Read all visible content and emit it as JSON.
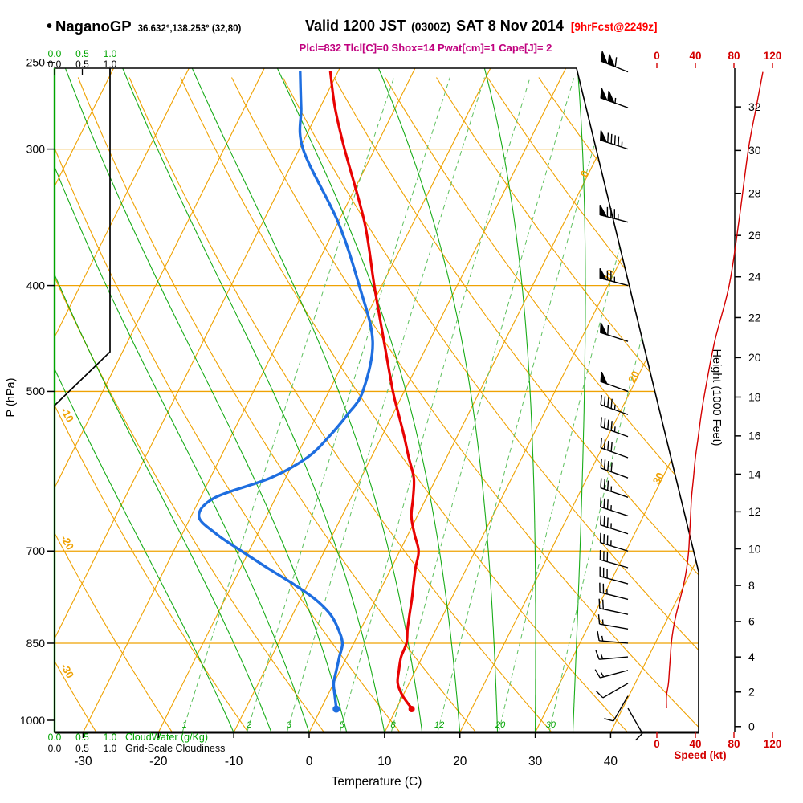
{
  "header": {
    "bullet": "•",
    "station": "NaganoGP",
    "coords": "36.632°,138.253° (32,80)",
    "valid_label": "Valid 1200 JST",
    "valid_zulu": "(0300Z)",
    "valid_date": "SAT 8 Nov 2014",
    "forecast_tag": "[9hrFcst@2249z]",
    "indices": "Plcl=832 Tlcl[C]=0 Shox=14 Pwat[cm]=1 Cape[J]= 2"
  },
  "axes": {
    "pressure_label": "P (hPa)",
    "pressure_ticks": [
      250,
      300,
      400,
      500,
      700,
      850,
      1000
    ],
    "temperature_label": "Temperature (C)",
    "temperature_ticks": [
      -30,
      -20,
      -10,
      0,
      10,
      20,
      30,
      40
    ],
    "height_label": "Height (1000 Feet)",
    "height_ticks": [
      0,
      2,
      4,
      6,
      8,
      10,
      12,
      14,
      16,
      18,
      20,
      22,
      24,
      26,
      28,
      30,
      32
    ],
    "speed_label": "Speed (kt)",
    "speed_ticks": [
      0,
      40,
      80,
      120
    ],
    "cloudwater_label": "CloudWater (g/Kg)",
    "cloudwater_ticks": [
      "0.0",
      "0.5",
      "1.0"
    ],
    "cloudiness_label": "Grid-Scale Cloudiness",
    "cloudiness_ticks": [
      "0.0",
      "0.5",
      "1.0"
    ]
  },
  "chart_data": {
    "type": "skewt_logp_sounding",
    "pressure_range_hpa": [
      1026,
      253
    ],
    "isobar_lines_hpa": [
      300,
      400,
      500,
      700,
      850
    ],
    "isotherm_step_c": 10,
    "isotherm_edge_labels_c": [
      0,
      10,
      20,
      30
    ],
    "dry_adiabat_edge_labels_c": [
      -10,
      -20,
      -30
    ],
    "mixing_ratio_lines_gkg": [
      1,
      2,
      3,
      5,
      8,
      12,
      20,
      30
    ],
    "moist_adiabat_start_temps_c": [
      -10,
      -5,
      0,
      5,
      10,
      15,
      20,
      25,
      30,
      35
    ],
    "surface": {
      "p": 975,
      "t": 12.0,
      "td": 2.0
    },
    "sounding": [
      {
        "p": 975,
        "t": 12.0,
        "td": 2.0,
        "wd": 150,
        "ws": 10
      },
      {
        "p": 950,
        "t": 10.0,
        "td": 1.0,
        "wd": 210,
        "ws": 10
      },
      {
        "p": 925,
        "t": 8.5,
        "td": 0.0,
        "wd": 240,
        "ws": 12
      },
      {
        "p": 900,
        "t": 7.8,
        "td": -0.5,
        "wd": 255,
        "ws": 13
      },
      {
        "p": 875,
        "t": 7.2,
        "td": -1.0,
        "wd": 265,
        "ws": 14
      },
      {
        "p": 850,
        "t": 7.0,
        "td": -1.5,
        "wd": 275,
        "ws": 15
      },
      {
        "p": 825,
        "t": 6.2,
        "td": -3.0,
        "wd": 280,
        "ws": 17
      },
      {
        "p": 800,
        "t": 5.5,
        "td": -5.0,
        "wd": 282,
        "ws": 20
      },
      {
        "p": 775,
        "t": 4.8,
        "td": -8.0,
        "wd": 284,
        "ws": 24
      },
      {
        "p": 750,
        "t": 4.0,
        "td": -12.0,
        "wd": 285,
        "ws": 28
      },
      {
        "p": 725,
        "t": 3.2,
        "td": -16.5,
        "wd": 286,
        "ws": 31
      },
      {
        "p": 700,
        "t": 2.5,
        "td": -21.0,
        "wd": 287,
        "ws": 33
      },
      {
        "p": 675,
        "t": 0.8,
        "td": -25.5,
        "wd": 288,
        "ws": 34
      },
      {
        "p": 650,
        "t": -0.8,
        "td": -29.0,
        "wd": 288,
        "ws": 35
      },
      {
        "p": 625,
        "t": -1.8,
        "td": -28.0,
        "wd": 289,
        "ws": 36
      },
      {
        "p": 600,
        "t": -3.0,
        "td": -22.0,
        "wd": 290,
        "ws": 38
      },
      {
        "p": 575,
        "t": -5.0,
        "td": -18.5,
        "wd": 290,
        "ws": 40
      },
      {
        "p": 550,
        "t": -7.0,
        "td": -17.0,
        "wd": 290,
        "ws": 43
      },
      {
        "p": 525,
        "t": -9.2,
        "td": -16.0,
        "wd": 290,
        "ws": 46
      },
      {
        "p": 500,
        "t": -11.5,
        "td": -15.5,
        "wd": 290,
        "ws": 50
      },
      {
        "p": 450,
        "t": -16.0,
        "td": -17.5,
        "wd": 288,
        "ws": 60
      },
      {
        "p": 400,
        "t": -21.0,
        "td": -23.0,
        "wd": 285,
        "ws": 75
      },
      {
        "p": 350,
        "t": -26.5,
        "td": -30.0,
        "wd": 285,
        "ws": 85
      },
      {
        "p": 300,
        "t": -34.0,
        "td": -39.5,
        "wd": 288,
        "ws": 95
      },
      {
        "p": 275,
        "t": -38.0,
        "td": -42.5,
        "wd": 290,
        "ws": 103
      },
      {
        "p": 255,
        "t": -41.0,
        "td": -45.0,
        "wd": 292,
        "ws": 110
      }
    ],
    "cloudiness_profile": [
      {
        "p": 1026,
        "v": 0
      },
      {
        "p": 515,
        "v": 0
      },
      {
        "p": 460,
        "v": 1
      },
      {
        "p": 253,
        "v": 1
      }
    ],
    "cloudwater_profile": [
      {
        "p": 1026,
        "v": 0
      },
      {
        "p": 253,
        "v": 0
      }
    ]
  },
  "colors": {
    "grid_orange": "#efa203",
    "green": "#00a400",
    "mix_green": "#5ec05e",
    "temp_red": "#e80202",
    "dewp_blue": "#1e6ee0",
    "speed_red": "#d40000",
    "indices_magenta": "#c0007e",
    "tag_red": "#ff0000",
    "black": "#000000"
  }
}
